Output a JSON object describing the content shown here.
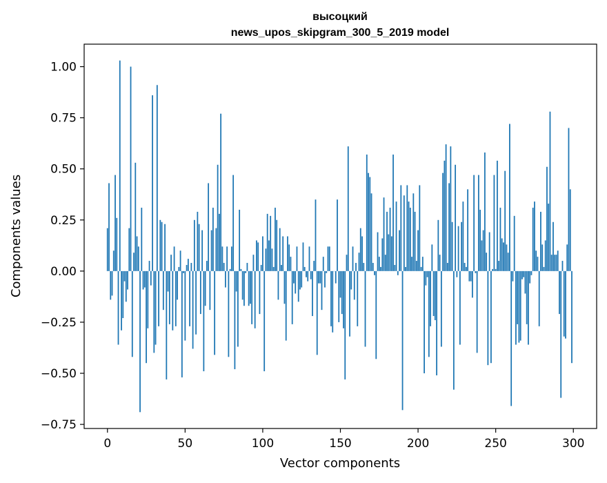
{
  "chart_data": {
    "type": "bar",
    "title": "высоцкий",
    "subtitle": "news_upos_skipgram_300_5_2019 model",
    "xlabel": "Vector components",
    "ylabel": "Components values",
    "xlim": [
      -15,
      315
    ],
    "ylim": [
      -0.77,
      1.11
    ],
    "xticks": [
      0,
      50,
      100,
      150,
      200,
      250,
      300
    ],
    "yticks": [
      -0.75,
      -0.5,
      -0.25,
      0.0,
      0.25,
      0.5,
      0.75,
      1.0
    ],
    "ytick_labels": [
      "−0.75",
      "−0.50",
      "−0.25",
      "0.00",
      "0.25",
      "0.50",
      "0.75",
      "1.00"
    ],
    "bar_color": "#1f77b4",
    "grid": false,
    "x": [
      0,
      1,
      2,
      3,
      4,
      5,
      6,
      7,
      8,
      9,
      10,
      11,
      12,
      13,
      14,
      15,
      16,
      17,
      18,
      19,
      20,
      21,
      22,
      23,
      24,
      25,
      26,
      27,
      28,
      29,
      30,
      31,
      32,
      33,
      34,
      35,
      36,
      37,
      38,
      39,
      40,
      41,
      42,
      43,
      44,
      45,
      46,
      47,
      48,
      49,
      50,
      51,
      52,
      53,
      54,
      55,
      56,
      57,
      58,
      59,
      60,
      61,
      62,
      63,
      64,
      65,
      66,
      67,
      68,
      69,
      70,
      71,
      72,
      73,
      74,
      75,
      76,
      77,
      78,
      79,
      80,
      81,
      82,
      83,
      84,
      85,
      86,
      87,
      88,
      89,
      90,
      91,
      92,
      93,
      94,
      95,
      96,
      97,
      98,
      99,
      100,
      101,
      102,
      103,
      104,
      105,
      106,
      107,
      108,
      109,
      110,
      111,
      112,
      113,
      114,
      115,
      116,
      117,
      118,
      119,
      120,
      121,
      122,
      123,
      124,
      125,
      126,
      127,
      128,
      129,
      130,
      131,
      132,
      133,
      134,
      135,
      136,
      137,
      138,
      139,
      140,
      141,
      142,
      143,
      144,
      145,
      146,
      147,
      148,
      149,
      150,
      151,
      152,
      153,
      154,
      155,
      156,
      157,
      158,
      159,
      160,
      161,
      162,
      163,
      164,
      165,
      166,
      167,
      168,
      169,
      170,
      171,
      172,
      173,
      174,
      175,
      176,
      177,
      178,
      179,
      180,
      181,
      182,
      183,
      184,
      185,
      186,
      187,
      188,
      189,
      190,
      191,
      192,
      193,
      194,
      195,
      196,
      197,
      198,
      199,
      200,
      201,
      202,
      203,
      204,
      205,
      206,
      207,
      208,
      209,
      210,
      211,
      212,
      213,
      214,
      215,
      216,
      217,
      218,
      219,
      220,
      221,
      222,
      223,
      224,
      225,
      226,
      227,
      228,
      229,
      230,
      231,
      232,
      233,
      234,
      235,
      236,
      237,
      238,
      239,
      240,
      241,
      242,
      243,
      244,
      245,
      246,
      247,
      248,
      249,
      250,
      251,
      252,
      253,
      254,
      255,
      256,
      257,
      258,
      259,
      260,
      261,
      262,
      263,
      264,
      265,
      266,
      267,
      268,
      269,
      270,
      271,
      272,
      273,
      274,
      275,
      276,
      277,
      278,
      279,
      280,
      281,
      282,
      283,
      284,
      285,
      286,
      287,
      288,
      289,
      290,
      291,
      292,
      293,
      294,
      295,
      296,
      297,
      298,
      299
    ],
    "values": [
      0.21,
      0.43,
      -0.14,
      -0.12,
      0.1,
      0.47,
      0.26,
      -0.36,
      1.03,
      -0.29,
      -0.23,
      -0.05,
      -0.15,
      -0.09,
      0.21,
      1.0,
      -0.42,
      0.09,
      0.53,
      0.17,
      0.12,
      -0.69,
      0.31,
      -0.09,
      -0.08,
      -0.45,
      -0.28,
      0.05,
      -0.07,
      0.86,
      -0.4,
      -0.36,
      0.91,
      -0.27,
      0.25,
      0.24,
      -0.19,
      0.23,
      -0.53,
      -0.1,
      -0.26,
      0.08,
      -0.29,
      0.12,
      -0.27,
      -0.14,
      0.02,
      0.1,
      -0.52,
      -0.01,
      -0.34,
      0.03,
      0.06,
      -0.27,
      0.04,
      -0.38,
      0.25,
      -0.31,
      0.29,
      0.23,
      -0.21,
      0.2,
      -0.49,
      -0.17,
      0.05,
      0.43,
      -0.19,
      0.2,
      0.31,
      -0.41,
      0.21,
      0.52,
      0.28,
      0.77,
      0.12,
      0.04,
      -0.08,
      0.12,
      -0.42,
      0.01,
      0.12,
      0.47,
      -0.48,
      -0.1,
      -0.37,
      0.3,
      0.01,
      -0.14,
      -0.17,
      -0.01,
      0.04,
      -0.17,
      -0.16,
      -0.26,
      0.08,
      -0.28,
      0.15,
      0.14,
      -0.21,
      0.03,
      0.17,
      -0.49,
      0.11,
      0.28,
      0.15,
      0.27,
      0.11,
      0.02,
      0.31,
      0.25,
      -0.14,
      0.21,
      0.03,
      0.17,
      -0.16,
      -0.34,
      0.17,
      0.13,
      0.07,
      -0.26,
      -0.06,
      -0.11,
      0.12,
      -0.15,
      -0.09,
      -0.08,
      0.14,
      0.02,
      -0.03,
      -0.05,
      0.12,
      -0.04,
      -0.22,
      0.05,
      0.35,
      -0.41,
      -0.06,
      -0.06,
      -0.19,
      0.07,
      -0.08,
      -0.01,
      0.12,
      0.12,
      -0.27,
      -0.3,
      0.0,
      -0.06,
      0.35,
      -0.25,
      -0.13,
      -0.21,
      -0.28,
      -0.53,
      0.08,
      0.61,
      -0.32,
      -0.09,
      0.12,
      -0.14,
      0.04,
      -0.27,
      0.09,
      0.21,
      0.17,
      0.04,
      -0.37,
      0.57,
      0.48,
      0.46,
      0.38,
      0.04,
      -0.02,
      -0.43,
      0.19,
      0.07,
      0.02,
      0.16,
      0.36,
      0.08,
      0.29,
      0.18,
      0.31,
      0.17,
      0.57,
      0.03,
      0.34,
      -0.02,
      0.2,
      0.42,
      -0.68,
      0.37,
      0.02,
      0.42,
      0.34,
      0.31,
      0.07,
      0.38,
      0.29,
      0.05,
      0.2,
      0.42,
      0.02,
      0.07,
      -0.5,
      -0.07,
      -0.03,
      -0.42,
      -0.27,
      0.13,
      -0.22,
      -0.24,
      -0.51,
      0.25,
      0.08,
      -0.37,
      0.48,
      0.54,
      0.62,
      0.04,
      0.43,
      0.61,
      0.24,
      -0.58,
      0.52,
      -0.03,
      0.22,
      -0.36,
      0.24,
      0.34,
      0.04,
      0.02,
      0.4,
      -0.05,
      -0.05,
      -0.13,
      0.47,
      -0.01,
      -0.4,
      0.47,
      0.3,
      0.15,
      0.2,
      0.58,
      0.09,
      -0.46,
      0.19,
      -0.45,
      0.01,
      0.47,
      0.01,
      0.54,
      0.05,
      0.31,
      0.16,
      0.14,
      0.49,
      0.13,
      0.09,
      0.72,
      -0.66,
      -0.05,
      0.27,
      -0.36,
      -0.26,
      -0.35,
      -0.34,
      -0.04,
      -0.03,
      -0.11,
      -0.26,
      -0.36,
      -0.06,
      -0.02,
      0.31,
      0.34,
      0.1,
      0.07,
      -0.27,
      0.29,
      0.13,
      0.02,
      0.15,
      0.51,
      0.33,
      0.78,
      0.08,
      0.24,
      0.08,
      0.08,
      0.1,
      -0.21,
      -0.62,
      0.05,
      -0.32,
      -0.33,
      0.13,
      0.7,
      0.4,
      -0.45
    ]
  }
}
